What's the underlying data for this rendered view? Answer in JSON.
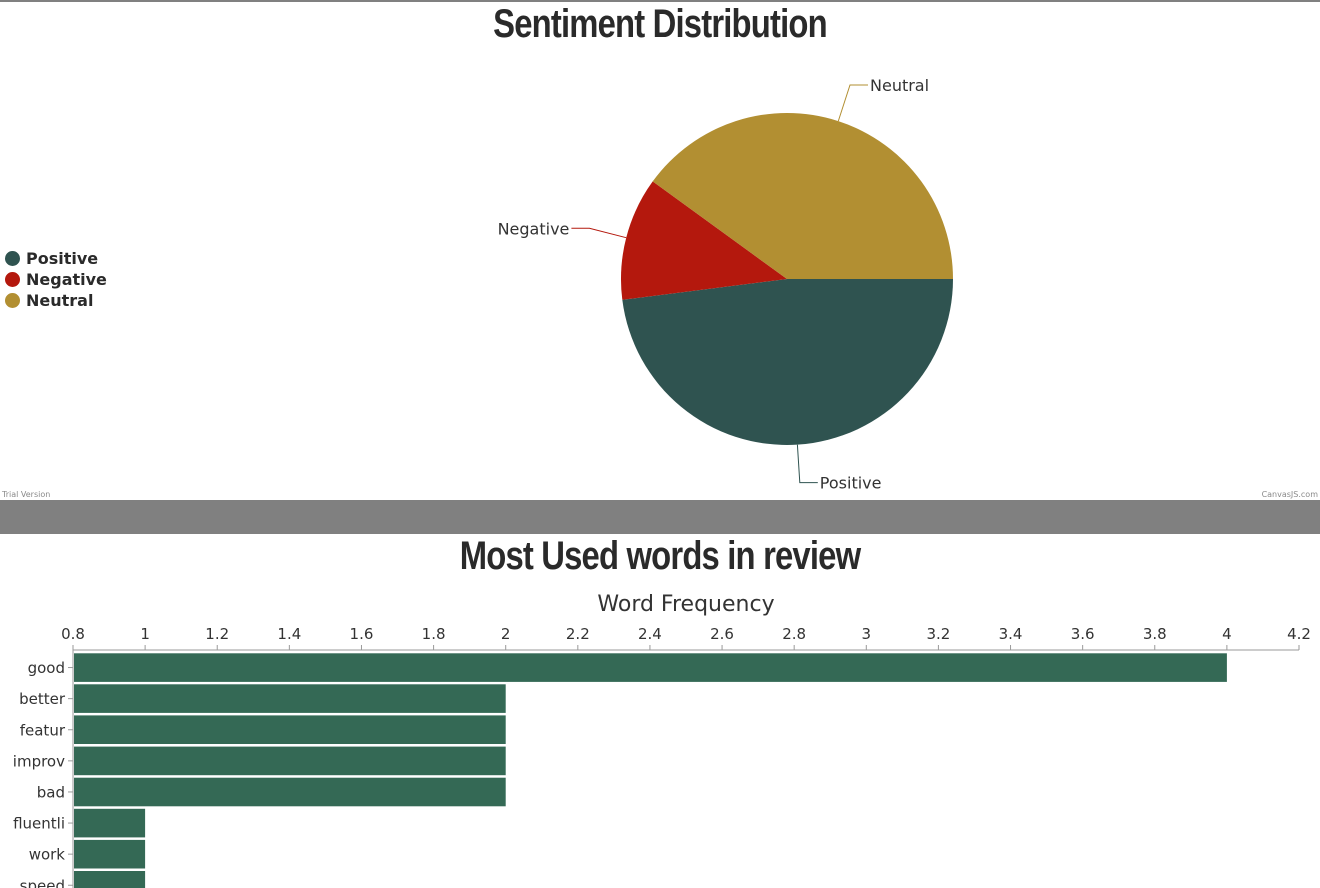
{
  "pie_chart": {
    "title": "Sentiment Distribution",
    "legend_position": "left",
    "watermark_left": "Trial Version",
    "watermark_right": "CanvasJS.com"
  },
  "bar_chart": {
    "title": "Most Used words in review",
    "axis_title": "Word Frequency"
  },
  "colors": {
    "positive": "#2f5350",
    "negative": "#b4180d",
    "neutral": "#b28f32",
    "bar": "#346955",
    "separator": "#808080"
  },
  "chart_data": [
    {
      "type": "pie",
      "title": "Sentiment Distribution",
      "slices": [
        {
          "label": "Positive",
          "value": 48
        },
        {
          "label": "Negative",
          "value": 12
        },
        {
          "label": "Neutral",
          "value": 40
        }
      ],
      "legend": [
        "Positive",
        "Negative",
        "Neutral"
      ],
      "legend_placement": "left"
    },
    {
      "type": "bar",
      "orientation": "horizontal",
      "title": "Most Used words in review",
      "xlabel": "Word Frequency",
      "xaxis_position": "top",
      "xlim": [
        0.8,
        4.2
      ],
      "xticks": [
        "0.8",
        "1",
        "1.2",
        "1.4",
        "1.6",
        "1.8",
        "2",
        "2.2",
        "2.4",
        "2.6",
        "2.8",
        "3",
        "3.2",
        "3.4",
        "3.6",
        "3.8",
        "4",
        "4.2"
      ],
      "categories": [
        "good",
        "better",
        "featur",
        "improv",
        "bad",
        "fluentli",
        "work",
        "speed"
      ],
      "values": [
        4,
        2,
        2,
        2,
        2,
        1,
        1,
        1
      ]
    }
  ]
}
